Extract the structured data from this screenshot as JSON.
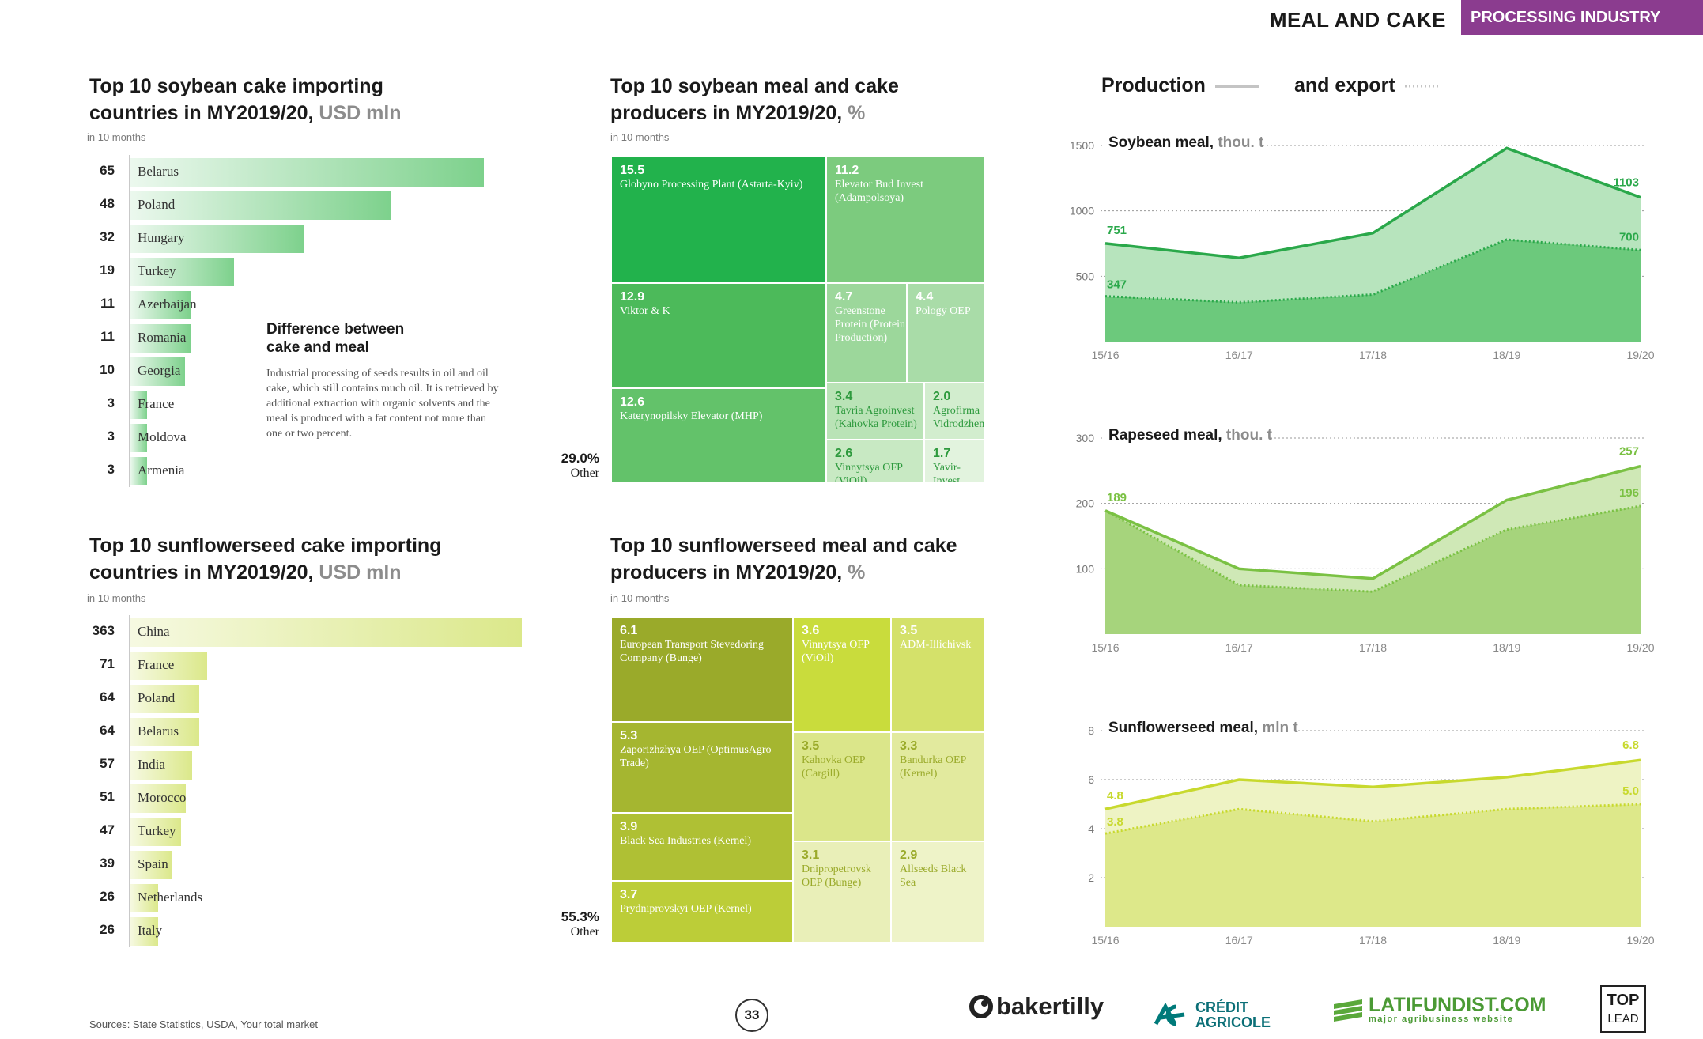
{
  "header": {
    "title": "MEAL AND CAKE",
    "badge": "PROCESSING INDUSTRY"
  },
  "panels": {
    "soy_cake": {
      "title_line1": "Top 10 soybean cake importing",
      "title_line2_main": "countries in MY2019/20,",
      "title_line2_unit": "USD mln",
      "note": "in 10 months"
    },
    "soy_treemap": {
      "title_line1": "Top 10 soybean meal and cake",
      "title_line2_main": "producers in MY2019/20,",
      "title_line2_unit": "%",
      "note": "in 10 months"
    },
    "sun_cake": {
      "title_line1": "Top 10 sunflowerseed cake importing",
      "title_line2_main": "countries in MY2019/20,",
      "title_line2_unit": "USD mln",
      "note": "in 10 months"
    },
    "sun_treemap": {
      "title_line1": "Top 10 sunflowerseed meal and cake",
      "title_line2_main": "producers in MY2019/20,",
      "title_line2_unit": "%",
      "note": "in 10 months"
    }
  },
  "info_box": {
    "title_line1": "Difference between",
    "title_line2": "cake and meal",
    "text": "Industrial processing of seeds results in oil and oil cake, which still contains much oil. It is retrieved by additional extraction with organic solvents and the meal is produced with a fat content not more than one or two percent."
  },
  "right_legend": {
    "production": "Production",
    "export": "and export"
  },
  "chart_data": [
    {
      "id": "soy_cake_bars",
      "type": "bar",
      "categories": [
        "Belarus",
        "Poland",
        "Hungary",
        "Turkey",
        "Azerbaijan",
        "Romania",
        "Georgia",
        "France",
        "Moldova",
        "Armenia"
      ],
      "values": [
        65,
        48,
        32,
        19,
        11,
        11,
        10,
        3,
        3,
        3
      ],
      "title": "Top 10 soybean cake importing countries in MY2019/20, USD mln",
      "color": "#7dd18c"
    },
    {
      "id": "sun_cake_bars",
      "type": "bar",
      "categories": [
        "China",
        "France",
        "Poland",
        "Belarus",
        "India",
        "Morocco",
        "Turkey",
        "Spain",
        "Netherlands",
        "Italy"
      ],
      "values": [
        363,
        71,
        64,
        64,
        57,
        51,
        47,
        39,
        26,
        26
      ],
      "title": "Top 10 sunflowerseed cake importing countries in MY2019/20, USD mln",
      "color": "#dbe88a"
    },
    {
      "id": "soy_treemap",
      "type": "treemap",
      "title": "Top 10 soybean meal and cake producers in MY2019/20, %",
      "items": [
        {
          "value": "15.5",
          "label": "Globyno Processing Plant (Astarta-Kyiv)",
          "color": "#22b24c",
          "text_color": "#ffffff"
        },
        {
          "value": "11.2",
          "label": "Elevator Bud Invest (Adampolsoya)",
          "color": "#7ccb7e",
          "text_color": "#ffffff"
        },
        {
          "value": "12.9",
          "label": "Viktor & K",
          "color": "#4cba5a",
          "text_color": "#ffffff"
        },
        {
          "value": "4.7",
          "label": "Greenstone Protein (Protein Production)",
          "color": "#9cd79b",
          "text_color": "#ffffff"
        },
        {
          "value": "4.4",
          "label": "Pology OEP",
          "color": "#a9dca8",
          "text_color": "#ffffff"
        },
        {
          "value": "12.6",
          "label": "Katerynopilsky Elevator (MHP)",
          "color": "#63c26a",
          "text_color": "#ffffff"
        },
        {
          "value": "3.4",
          "label": "Tavria Agroinvest (Kahovka Protein)",
          "color": "#b9e3b6",
          "text_color": "#2e9a3e"
        },
        {
          "value": "2.0",
          "label": "Agrofirma Vidrodzhennya",
          "color": "#d2edce",
          "text_color": "#2e9a3e"
        },
        {
          "value": "2.6",
          "label": "Vinnytsya OFP (ViOil)",
          "color": "#c8e9c3",
          "text_color": "#2e9a3e"
        },
        {
          "value": "1.7",
          "label": "Yavir-Invest",
          "color": "#e2f3de",
          "text_color": "#2e9a3e"
        }
      ],
      "other": {
        "value": "29.0%",
        "label": "Other"
      }
    },
    {
      "id": "sun_treemap",
      "type": "treemap",
      "title": "Top 10 sunflowerseed meal and cake producers in MY2019/20, %",
      "items": [
        {
          "value": "6.1",
          "label": "European Transport Stevedoring Company (Bunge)",
          "color": "#9aaa2a",
          "text_color": "#ffffff"
        },
        {
          "value": "3.6",
          "label": "Vinnytsya OFP (ViOil)",
          "color": "#c9dc3c",
          "text_color": "#ffffff"
        },
        {
          "value": "3.5",
          "label": "ADM-Illichivsk",
          "color": "#d4e16a",
          "text_color": "#ffffff"
        },
        {
          "value": "5.3",
          "label": "Zaporizhzhya OEP (OptimusAgro Trade)",
          "color": "#a5b630",
          "text_color": "#ffffff"
        },
        {
          "value": "3.5",
          "label": "Kahovka OEP (Cargill)",
          "color": "#dbe68a",
          "text_color": "#9aaa2a"
        },
        {
          "value": "3.3",
          "label": "Bandurka OEP (Kernel)",
          "color": "#e2ea9e",
          "text_color": "#9aaa2a"
        },
        {
          "value": "3.9",
          "label": "Black Sea Industries (Kernel)",
          "color": "#afc034",
          "text_color": "#ffffff"
        },
        {
          "value": "3.7",
          "label": "Prydniprovskyi OEP (Kernel)",
          "color": "#bccd38",
          "text_color": "#ffffff"
        },
        {
          "value": "3.1",
          "label": "Dnipropetrovsk OEP (Bunge)",
          "color": "#e9efb8",
          "text_color": "#9aaa2a"
        },
        {
          "value": "2.9",
          "label": "Allseeds Black Sea",
          "color": "#eef3c8",
          "text_color": "#9aaa2a"
        }
      ],
      "other": {
        "value": "55.3%",
        "label": "Other"
      }
    },
    {
      "id": "soybean_meal",
      "type": "area",
      "title": "Soybean meal,",
      "unit": "thou. t",
      "categories": [
        "15/16",
        "16/17",
        "17/18",
        "18/19",
        "19/20"
      ],
      "series": [
        {
          "role": "production",
          "values": [
            751,
            640,
            830,
            1480,
            1103
          ]
        },
        {
          "role": "export",
          "values": [
            347,
            300,
            360,
            780,
            700
          ]
        }
      ],
      "labels": {
        "first_prod": "751",
        "last_prod": "1103",
        "first_exp": "347",
        "last_exp": "700"
      },
      "ylim": [
        0,
        1500
      ],
      "yticks": [
        500,
        1000,
        1500
      ],
      "colors": {
        "line": "#2aa84a",
        "fill_prod": "#b7e4bd",
        "fill_exp": "#6cc97c"
      }
    },
    {
      "id": "rapeseed_meal",
      "type": "area",
      "title": "Rapeseed meal,",
      "unit": "thou. t",
      "categories": [
        "15/16",
        "16/17",
        "17/18",
        "18/19",
        "19/20"
      ],
      "series": [
        {
          "role": "production",
          "values": [
            189,
            100,
            85,
            205,
            257
          ]
        },
        {
          "role": "export",
          "values": [
            189,
            75,
            65,
            160,
            196
          ]
        }
      ],
      "labels": {
        "first_prod": "189",
        "last_prod": "257",
        "last_exp": "196"
      },
      "ylim": [
        0,
        300
      ],
      "yticks": [
        100,
        200,
        300
      ],
      "colors": {
        "line": "#7ac143",
        "fill_prod": "#cfe8b6",
        "fill_exp": "#a6d47c"
      }
    },
    {
      "id": "sunflowerseed_meal",
      "type": "area",
      "title": "Sunflowerseed meal,",
      "unit": "mln t",
      "categories": [
        "15/16",
        "16/17",
        "17/18",
        "18/19",
        "19/20"
      ],
      "series": [
        {
          "role": "production",
          "values": [
            4.8,
            6.0,
            5.7,
            6.1,
            6.8
          ]
        },
        {
          "role": "export",
          "values": [
            3.8,
            4.8,
            4.3,
            4.8,
            5.0
          ]
        }
      ],
      "labels": {
        "first_prod": "4.8",
        "last_prod": "6.8",
        "first_exp": "3.8",
        "last_exp": "5.0"
      },
      "ylim": [
        0,
        8
      ],
      "yticks": [
        2,
        4,
        6,
        8
      ],
      "colors": {
        "line": "#c8d92e",
        "fill_prod": "#eef3c4",
        "fill_exp": "#dde88a"
      }
    }
  ],
  "footer": {
    "sources": "Sources: State Statistics, USDA, Your total market",
    "page": "33",
    "logos": [
      "bakertilly",
      "CRÉDIT",
      "AGRICOLE",
      "LATIFUNDIST.COM",
      "major agribusiness website",
      "TOP",
      "LEAD"
    ]
  }
}
